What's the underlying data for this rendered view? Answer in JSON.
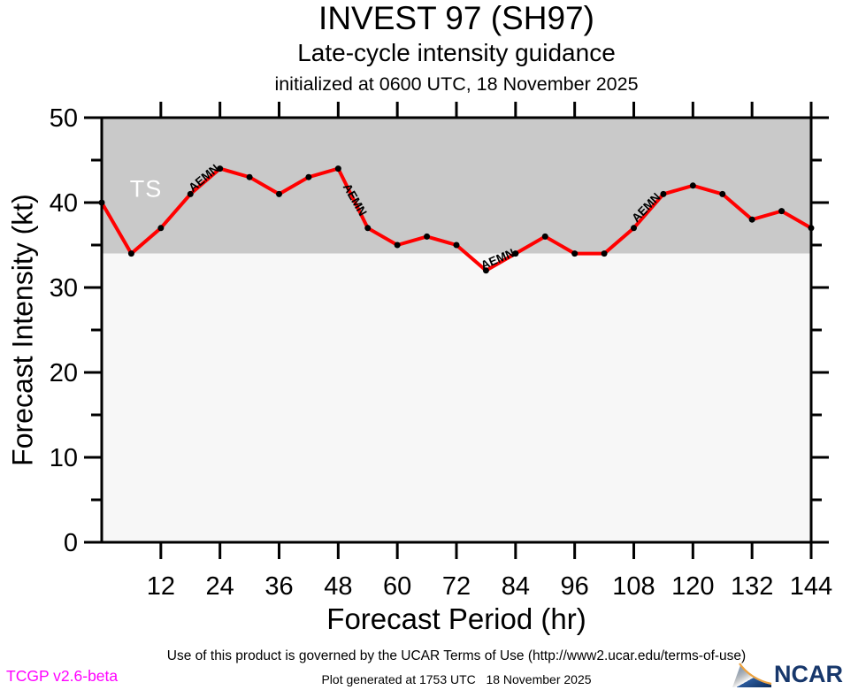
{
  "header": {
    "title": "INVEST 97 (SH97)",
    "subtitle": "Late-cycle intensity guidance",
    "initialized": "initialized at 0600 UTC, 18 November 2025"
  },
  "chart_data": {
    "type": "line",
    "title": "INVEST 97 (SH97) Late-cycle intensity guidance",
    "xlabel": "Forecast Period (hr)",
    "ylabel": "Forecast Intensity (kt)",
    "xlim": [
      0,
      144
    ],
    "ylim": [
      0,
      50
    ],
    "xticks": [
      12,
      24,
      36,
      48,
      60,
      72,
      84,
      96,
      108,
      120,
      132,
      144
    ],
    "yticks": [
      0,
      10,
      20,
      30,
      40,
      50
    ],
    "yticks_minor": [
      5,
      15,
      25,
      35,
      45
    ],
    "grid": false,
    "x": [
      0,
      6,
      12,
      18,
      24,
      30,
      36,
      42,
      48,
      54,
      60,
      66,
      72,
      78,
      84,
      90,
      96,
      102,
      108,
      114,
      120,
      126,
      132,
      138,
      144
    ],
    "series": [
      {
        "name": "AEMN",
        "color": "#ff0000",
        "marker_color": "#000000",
        "values": [
          40,
          34,
          37,
          41,
          44,
          43,
          41,
          43,
          44,
          37,
          35,
          36,
          35,
          32,
          34,
          36,
          34,
          34,
          37,
          41,
          42,
          41,
          38,
          39,
          37
        ]
      }
    ],
    "bands": [
      {
        "label": "TS",
        "from": 34,
        "to": 50,
        "color": "#c9c9c9",
        "label_color": "#ffffff",
        "label_hr": 5.7,
        "label_kt": 40.7
      },
      {
        "label": "",
        "from": 0,
        "to": 34,
        "color": "#f7f7f7"
      }
    ],
    "line_labels": [
      {
        "text": "AEMN",
        "hr": 18.5,
        "kt": 41.2,
        "angle": -40
      },
      {
        "text": "AEMN",
        "hr": 48.9,
        "kt": 41.9,
        "angle": 60
      },
      {
        "text": "AEMN",
        "hr": 77.4,
        "kt": 32.1,
        "angle": -23
      },
      {
        "text": "AEMN",
        "hr": 108.6,
        "kt": 37.6,
        "angle": -46
      }
    ],
    "axis_color": "#000000"
  },
  "footer": {
    "terms": "Use of this product is governed by the UCAR Terms of Use (http://www2.ucar.edu/terms-of-use)",
    "generated": "Plot generated at 1753 UTC   18 November 2025",
    "version": "TCGP v2.6-beta",
    "logo_text": "NCAR"
  }
}
